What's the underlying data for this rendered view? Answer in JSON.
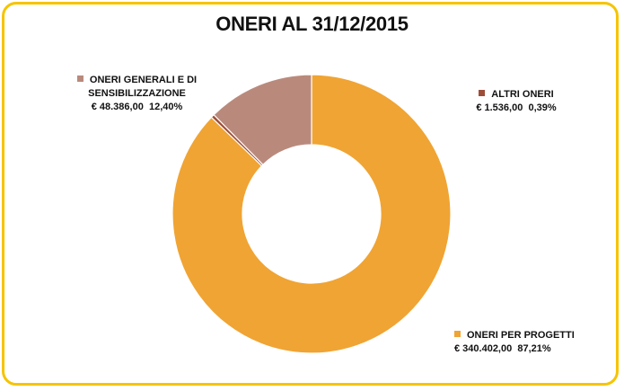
{
  "chart_data": {
    "type": "pie",
    "donut": true,
    "title": "ONERI AL 31/12/2015",
    "slices": [
      {
        "name": "ONERI PER PROGETTI",
        "value_text": "€ 340.402,00",
        "percent_text": "87,21%",
        "value": 340402.0,
        "percent": 87.21,
        "color": "#f0a433"
      },
      {
        "name": "ALTRI ONERI",
        "value_text": "€ 1.536,00",
        "percent_text": "0,39%",
        "value": 1536.0,
        "percent": 0.39,
        "color": "#9e4e38"
      },
      {
        "name": "ONERI GENERALI E DI SENSIBILIZZAZIONE",
        "name_lines": [
          "ONERI GENERALI E DI",
          "SENSIBILIZZAZIONE"
        ],
        "value_text": "€ 48.386,00",
        "percent_text": "12,40%",
        "value": 48386.0,
        "percent": 12.4,
        "color": "#b98a7c"
      }
    ],
    "start_angle_deg": 0,
    "direction": "clockwise",
    "border_color": "#f5c400"
  }
}
